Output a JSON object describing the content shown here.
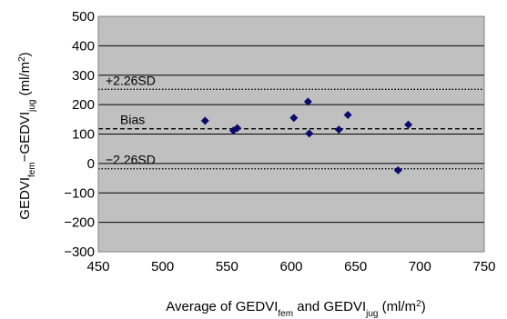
{
  "chart_data": {
    "type": "scatter",
    "x_axis": {
      "label_parts": [
        "Average of GEDVI",
        "fem",
        " and GEDVI",
        "jug",
        " (ml/m",
        "2",
        ")"
      ],
      "range": [
        450,
        750
      ],
      "ticks": [
        450,
        500,
        550,
        600,
        650,
        700,
        750
      ]
    },
    "y_axis": {
      "label_parts": [
        "GEDVI",
        "fem",
        "−GEDVI",
        "jug",
        " (ml/m",
        "2",
        ")"
      ],
      "range": [
        -300,
        500
      ],
      "ticks": [
        -300,
        -200,
        -100,
        0,
        100,
        200,
        300,
        400,
        500
      ],
      "tick_labels": [
        "−300",
        "−200",
        "−100",
        "0",
        "100",
        "200",
        "300",
        "400",
        "500"
      ]
    },
    "grid": true,
    "points": [
      {
        "x": 533,
        "y": 145
      },
      {
        "x": 555,
        "y": 112
      },
      {
        "x": 558,
        "y": 120
      },
      {
        "x": 602,
        "y": 155
      },
      {
        "x": 613,
        "y": 210
      },
      {
        "x": 614,
        "y": 102
      },
      {
        "x": 637,
        "y": 115
      },
      {
        "x": 644,
        "y": 165
      },
      {
        "x": 683,
        "y": -23
      },
      {
        "x": 691,
        "y": 132
      }
    ],
    "reference_lines": [
      {
        "label": "+2.26SD",
        "y": 252,
        "style": "dotted"
      },
      {
        "label": "Bias",
        "y": 118,
        "style": "dashed"
      },
      {
        "label": "−2.26SD",
        "y": -18,
        "style": "dotted"
      }
    ],
    "colors": {
      "plot_background": "#c0c0c0",
      "grid": "#000000",
      "point": "#0b0b6e"
    }
  }
}
